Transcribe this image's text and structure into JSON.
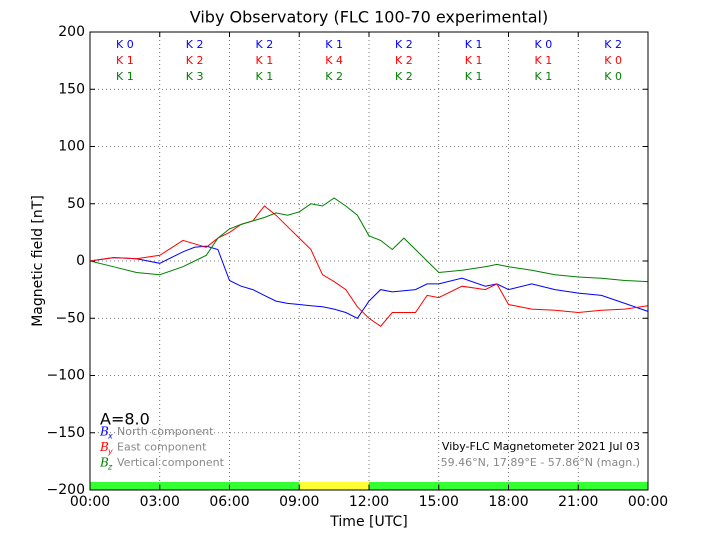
{
  "chart_data": {
    "type": "line",
    "title": "Viby Observatory (FLC 100-70 experimental)",
    "x_label": "Time [UTC]",
    "y_label": "Magnetic field [nT]",
    "x": [
      0,
      1,
      2,
      3,
      4,
      4.5,
      5,
      5.5,
      6,
      6.5,
      7,
      7.5,
      8,
      8.5,
      9,
      9.5,
      10,
      10.5,
      11,
      11.5,
      12,
      12.5,
      13,
      13.5,
      14,
      14.5,
      15,
      16,
      17,
      17.5,
      18,
      19,
      20,
      21,
      22,
      23,
      24
    ],
    "series": [
      {
        "name": "North component",
        "symbol": "B",
        "subscript": "x",
        "color": "#0000ff",
        "values": [
          0,
          3,
          2,
          -2,
          8,
          12,
          13,
          10,
          -17,
          -22,
          -25,
          -30,
          -35,
          -37,
          -38,
          -39,
          -40,
          -42,
          -45,
          -50,
          -35,
          -25,
          -27,
          -26,
          -25,
          -20,
          -20,
          -15,
          -22,
          -20,
          -25,
          -20,
          -25,
          -28,
          -30,
          -37,
          -44
        ]
      },
      {
        "name": "East component",
        "symbol": "B",
        "subscript": "y",
        "color": "#ff0000",
        "values": [
          0,
          3,
          2,
          5,
          18,
          15,
          12,
          20,
          25,
          32,
          35,
          48,
          40,
          30,
          20,
          10,
          -12,
          -18,
          -25,
          -40,
          -50,
          -57,
          -45,
          -45,
          -45,
          -30,
          -32,
          -22,
          -25,
          -20,
          -38,
          -42,
          -43,
          -45,
          -43,
          -42,
          -39
        ]
      },
      {
        "name": "Vertical component",
        "symbol": "B",
        "subscript": "z",
        "color": "#008000",
        "values": [
          0,
          -5,
          -10,
          -12,
          -5,
          0,
          5,
          20,
          28,
          32,
          35,
          38,
          42,
          40,
          43,
          50,
          48,
          55,
          48,
          40,
          22,
          18,
          10,
          20,
          10,
          0,
          -10,
          -8,
          -5,
          -3,
          -5,
          -8,
          -12,
          -14,
          -15,
          -17,
          -18
        ]
      }
    ],
    "xlim": [
      0,
      24
    ],
    "xticks": [
      {
        "value": 0,
        "label": "00:00"
      },
      {
        "value": 3,
        "label": "03:00"
      },
      {
        "value": 6,
        "label": "06:00"
      },
      {
        "value": 9,
        "label": "09:00"
      },
      {
        "value": 12,
        "label": "12:00"
      },
      {
        "value": 15,
        "label": "15:00"
      },
      {
        "value": 18,
        "label": "18:00"
      },
      {
        "value": 21,
        "label": "21:00"
      },
      {
        "value": 24,
        "label": "00:00"
      }
    ],
    "ylim": [
      -200,
      200
    ],
    "yticks": [
      {
        "value": -200,
        "label": "−200"
      },
      {
        "value": -150,
        "label": "−150"
      },
      {
        "value": -100,
        "label": "−100"
      },
      {
        "value": -50,
        "label": "−50"
      },
      0,
      50,
      100,
      150,
      200
    ],
    "grid": true,
    "k_index_rows": [
      {
        "color": "#0000ff",
        "labels": [
          "K 0",
          "K 2",
          "K 2",
          "K 1",
          "K 2",
          "K 1",
          "K 0",
          "K 2"
        ]
      },
      {
        "color": "#ff0000",
        "labels": [
          "K 1",
          "K 2",
          "K 1",
          "K 4",
          "K 2",
          "K 1",
          "K 1",
          "K 0"
        ]
      },
      {
        "color": "#008000",
        "labels": [
          "K 1",
          "K 3",
          "K 1",
          "K 2",
          "K 2",
          "K 1",
          "K 1",
          "K 0"
        ]
      }
    ],
    "a_index": "A=8.0",
    "station_text": "Viby-FLC Magnetometer 2021 Jul 03",
    "location_text": "59.46°N, 17.89°E - 57.86°N (magn.)",
    "status_bar": [
      {
        "start": 0,
        "end": 9,
        "color": "#33ff33"
      },
      {
        "start": 9,
        "end": 12,
        "color": "#ffff33"
      },
      {
        "start": 12,
        "end": 24,
        "color": "#33ff33"
      }
    ]
  }
}
